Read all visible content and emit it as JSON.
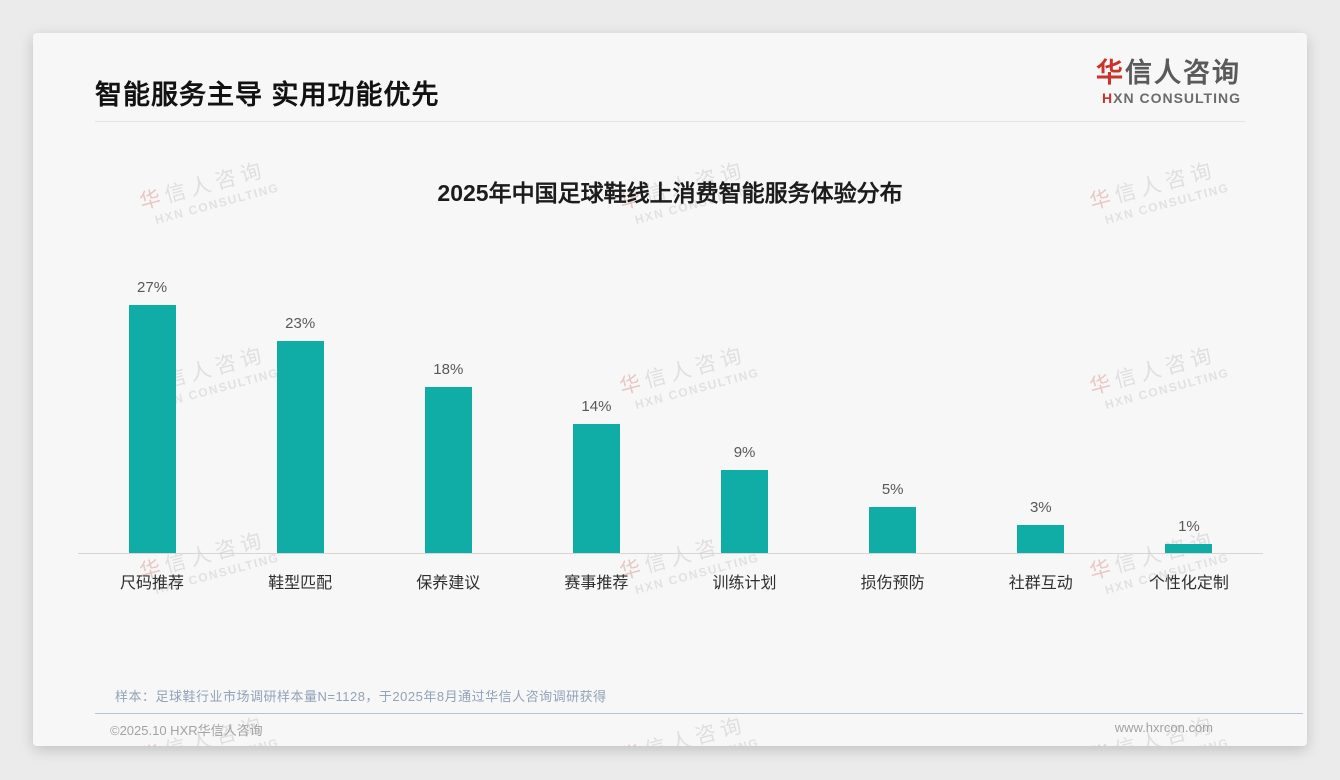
{
  "header": {
    "title": "智能服务主导 实用功能优先",
    "logo": {
      "cn_first": "华",
      "cn_rest": "信人咨询",
      "en_first": "H",
      "en_rest": "XN CONSULTING"
    }
  },
  "chart_data": {
    "type": "bar",
    "title": "2025年中国足球鞋线上消费智能服务体验分布",
    "categories": [
      "尺码推荐",
      "鞋型匹配",
      "保养建议",
      "赛事推荐",
      "训练计划",
      "损伤预防",
      "社群互动",
      "个性化定制"
    ],
    "values": [
      27,
      23,
      18,
      14,
      9,
      5,
      3,
      1
    ],
    "value_labels": [
      "27%",
      "23%",
      "18%",
      "14%",
      "9%",
      "5%",
      "3%",
      "1%"
    ],
    "unit": "%",
    "xlabel": "",
    "ylabel": "",
    "ylim": [
      0,
      28
    ],
    "grid": false,
    "legend": "none",
    "bar_color": "#0fada6"
  },
  "watermark": {
    "cn_first": "华",
    "cn_rest": "信人咨询",
    "en": "HXN CONSULTING"
  },
  "footer": {
    "sample_note": "样本：足球鞋行业市场调研样本量N=1128，于2025年8月通过华信人咨询调研获得",
    "copyright": "©2025.10 HXR华信人咨询",
    "website": "www.hxrcon.com"
  },
  "colors": {
    "bar": "#0fada6",
    "accent_red": "#c9342a",
    "note_blue_gray": "#92a2b8",
    "card_bg": "#f7f7f7",
    "page_bg": "#ebebeb"
  }
}
